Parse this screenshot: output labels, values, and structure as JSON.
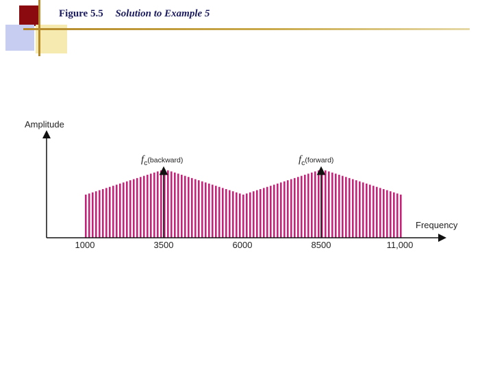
{
  "header": {
    "figure_label": "Figure 5.5",
    "caption": "Solution to Example 5"
  },
  "diagram": {
    "y_axis_label": "Amplitude",
    "x_axis_label": "Frequency",
    "ticks": [
      {
        "label": "1000",
        "value": 1000
      },
      {
        "label": "3500",
        "value": 3500
      },
      {
        "label": "6000",
        "value": 6000
      },
      {
        "label": "8500",
        "value": 8500
      },
      {
        "label": "11,000",
        "value": 11000
      }
    ],
    "carriers": [
      {
        "symbol": "f",
        "subscript": "c",
        "note": "(backward)",
        "value": 3500
      },
      {
        "symbol": "f",
        "subscript": "c",
        "note": "(forward)",
        "value": 8500
      }
    ],
    "spectrum_color": "#c8217a",
    "band_range": [
      1000,
      11000
    ],
    "band_profile": [
      {
        "freq": 1000,
        "level": 0.63
      },
      {
        "freq": 3500,
        "level": 1.0
      },
      {
        "freq": 6000,
        "level": 0.63
      },
      {
        "freq": 8500,
        "level": 1.0
      },
      {
        "freq": 11000,
        "level": 0.63
      }
    ]
  }
}
